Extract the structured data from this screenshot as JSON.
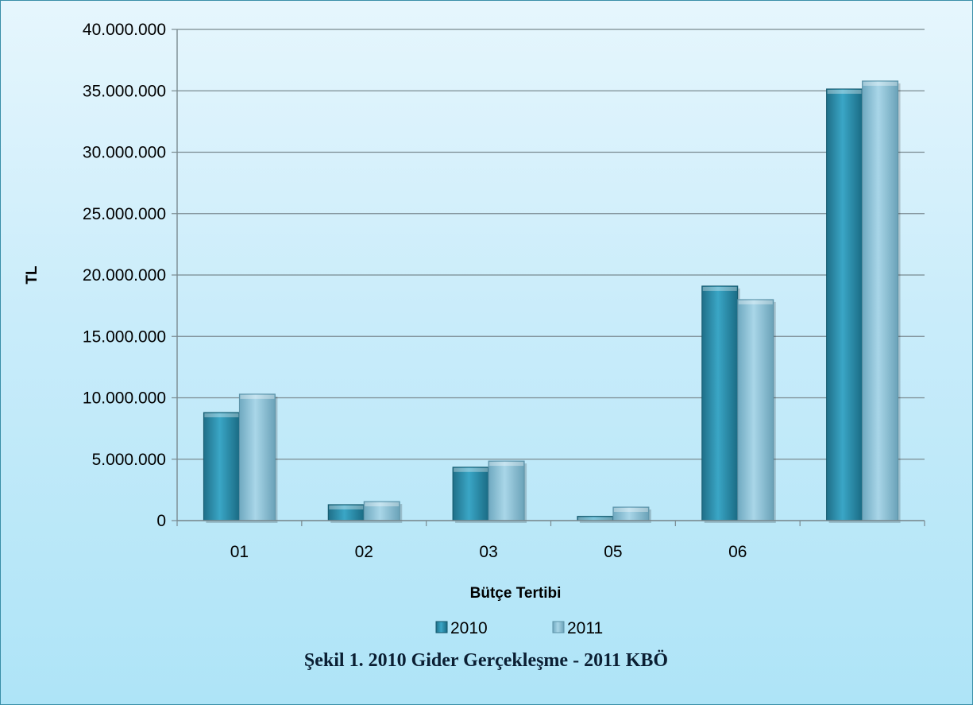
{
  "chart_data": {
    "type": "bar",
    "categories": [
      "01",
      "02",
      "03",
      "05",
      "06",
      ""
    ],
    "series": [
      {
        "name": "2010",
        "values": [
          8800000,
          1300000,
          4350000,
          350000,
          19100000,
          35150000
        ],
        "color": "#2a8fae"
      },
      {
        "name": "2011",
        "values": [
          10300000,
          1550000,
          4850000,
          1100000,
          18000000,
          35800000
        ],
        "color": "#8cc3d9"
      }
    ],
    "xlabel": "Bütçe Tertibi",
    "ylabel": "TL",
    "ylim": [
      0,
      40000000
    ],
    "yticks": [
      0,
      5000000,
      10000000,
      15000000,
      20000000,
      25000000,
      30000000,
      35000000,
      40000000
    ],
    "ytick_labels": [
      "0",
      "5.000.000",
      "10.000.000",
      "15.000.000",
      "20.000.000",
      "25.000.000",
      "30.000.000",
      "35.000.000",
      "40.000.000"
    ],
    "grid": true,
    "legend_position": "bottom"
  },
  "caption": "Şekil 1. 2010 Gider Gerçekleşme - 2011 KBÖ"
}
